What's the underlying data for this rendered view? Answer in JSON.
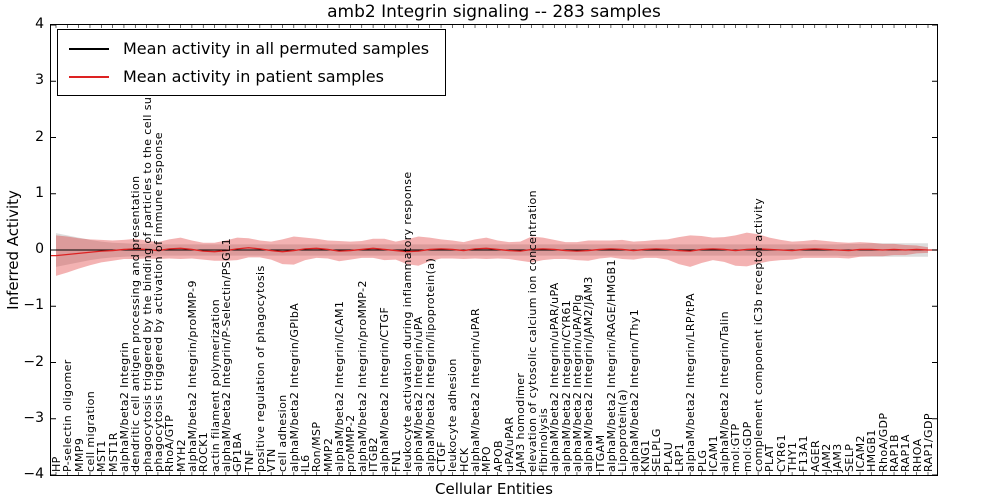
{
  "chart_data": {
    "type": "line",
    "title": "amb2 Integrin signaling -- 283 samples",
    "xlabel": "Cellular Entities",
    "ylabel": "Inferred Activity",
    "ylim": [
      -4,
      4
    ],
    "yticks": [
      4,
      3,
      2,
      1,
      0,
      -1,
      -2,
      -3,
      -4
    ],
    "grid": false,
    "legend_position": "upper left",
    "legend": [
      {
        "label": "Mean activity in all permuted samples",
        "color": "#000000"
      },
      {
        "label": "Mean activity in patient samples",
        "color": "#dd2222"
      }
    ],
    "permuted_band_color": "#9a9a9a",
    "band_opacity": {
      "permuted": 0.35,
      "patient": 0.35
    },
    "entities": [
      "HP",
      "P-selectin oligomer",
      "MMP9",
      "cell migration",
      "MST1",
      "MST1R",
      "alphaM/beta2 Integrin",
      "dendritic cell antigen processing and presentation",
      "phagocytosis triggered by the binding of particles to the cell surface",
      "phagocytosis triggered by activation of immune response",
      "RhoA/GTP",
      "MYH2",
      "alphaM/beta2 Integrin/proMMP-9",
      "ROCK1",
      "actin filament polymerization",
      "alphaM/beta2 Integrin/P-Selectin/PSGL1",
      "GP1BA",
      "TNF",
      "positive regulation of phagocytosis",
      "VTN",
      "cell adhesion",
      "alphaM/beta2 Integrin/GPIbA",
      "IL6",
      "Ron/MSP",
      "MMP2",
      "alphaM/beta2 Integrin/ICAM1",
      "proMMP-2",
      "alphaM/beta2 Integrin/proMMP-2",
      "ITGB2",
      "alphaM/beta2 Integrin/CTGF",
      "FN1",
      "leukocyte activation during inflammatory response",
      "alphaM/beta2 Integrin/uPA",
      "alphaM/beta2 Integrin/lipoprotein(a)",
      "CTGF",
      "leukocyte adhesion",
      "HCK",
      "alphaM/beta2 Integrin/uPAR",
      "MPO",
      "APOB",
      "uPA/uPAR",
      "JAM3 homodimer",
      "elevation of cytosolic calcium ion concentration",
      "fibrinolysis",
      "alphaM/beta2 Integrin/uPAR/uPA",
      "alphaM/beta2 Integrin/CYR61",
      "alphaM/beta2 Integrin/uPA/Plg",
      "alphaM/beta2 Integrin/JAM2/JAM3",
      "ITGAM",
      "alphaM/beta2 Integrin/RAGE/HMGB1",
      "Lipoprotein(a)",
      "alphaM/beta2 Integrin/Thy1",
      "KNG1",
      "SELPLG",
      "PLAU",
      "LRP1",
      "alphaM/beta2 Integrin/LRP/tPA",
      "PLG",
      "ICAM1",
      "alphaM/beta2 Integrin/Talin",
      "mol:GTP",
      "mol:GDP",
      "complement component iC3b receptor activity",
      "PLAT",
      "CYR61",
      "THY1",
      "F13A1",
      "AGER",
      "JAM2",
      "JAM3",
      "SELP",
      "ICAM2",
      "HMGB1",
      "RhoA/GDP",
      "RAP1B",
      "RAP1A",
      "RHOA",
      "RAP1/GDP"
    ],
    "series": {
      "permuted": {
        "name": "Mean activity in all permuted samples",
        "mean": 0.0,
        "band": [
          0.3,
          0.26,
          0.22,
          0.18,
          0.15,
          0.13,
          0.12,
          0.11,
          0.11,
          0.1,
          0.1,
          0.1,
          0.1,
          0.1,
          0.1,
          0.1,
          0.1,
          0.1,
          0.1,
          0.1,
          0.1,
          0.1,
          0.1,
          0.1,
          0.1,
          0.1,
          0.1,
          0.1,
          0.1,
          0.1,
          0.1,
          0.1,
          0.1,
          0.1,
          0.1,
          0.1,
          0.1,
          0.1,
          0.1,
          0.1,
          0.1,
          0.1,
          0.1,
          0.1,
          0.1,
          0.1,
          0.1,
          0.1,
          0.1,
          0.1,
          0.1,
          0.1,
          0.1,
          0.1,
          0.1,
          0.1,
          0.1,
          0.1,
          0.1,
          0.1,
          0.1,
          0.1,
          0.1,
          0.1,
          0.1,
          0.1,
          0.1,
          0.1,
          0.1,
          0.1,
          0.11,
          0.11,
          0.12,
          0.12,
          0.12,
          0.12,
          0.12,
          0.12
        ]
      },
      "patient": {
        "name": "Mean activity in patient samples",
        "mean": [
          -0.1,
          -0.08,
          -0.06,
          -0.04,
          -0.02,
          -0.01,
          0.01,
          0.02,
          0.01,
          -0.01,
          0.02,
          0.03,
          0.01,
          -0.02,
          -0.03,
          -0.01,
          0.02,
          0.04,
          0.02,
          -0.01,
          -0.03,
          -0.01,
          0.02,
          0.03,
          0.01,
          -0.02,
          -0.01,
          0.01,
          0.03,
          0.01,
          -0.01,
          -0.03,
          -0.02,
          0.01,
          0.02,
          0.01,
          -0.01,
          0.02,
          0.03,
          0.01,
          -0.01,
          -0.02,
          0.01,
          0.02,
          0.01,
          -0.01,
          -0.02,
          -0.01,
          0.01,
          0.02,
          0.01,
          -0.01,
          0.01,
          0.02,
          0.01,
          -0.01,
          -0.02,
          0.01,
          0.02,
          0.01,
          -0.01,
          0.01,
          0.02,
          0.01,
          0.0,
          -0.01,
          0.01,
          0.02,
          0.01,
          0.0,
          -0.01,
          0.01,
          0.01,
          0.0,
          0.01,
          0.0,
          0.01,
          0.0
        ],
        "band": [
          0.36,
          0.32,
          0.27,
          0.23,
          0.2,
          0.18,
          0.17,
          0.18,
          0.16,
          0.15,
          0.17,
          0.19,
          0.16,
          0.15,
          0.16,
          0.18,
          0.2,
          0.17,
          0.15,
          0.16,
          0.22,
          0.25,
          0.2,
          0.17,
          0.16,
          0.18,
          0.16,
          0.15,
          0.17,
          0.19,
          0.16,
          0.22,
          0.26,
          0.21,
          0.17,
          0.16,
          0.15,
          0.17,
          0.19,
          0.16,
          0.15,
          0.17,
          0.23,
          0.2,
          0.17,
          0.15,
          0.16,
          0.18,
          0.16,
          0.15,
          0.17,
          0.16,
          0.15,
          0.16,
          0.18,
          0.24,
          0.28,
          0.24,
          0.2,
          0.22,
          0.27,
          0.3,
          0.26,
          0.21,
          0.18,
          0.16,
          0.15,
          0.16,
          0.15,
          0.14,
          0.14,
          0.13,
          0.12,
          0.11,
          0.1,
          0.09,
          0.07,
          0.05
        ]
      }
    }
  }
}
